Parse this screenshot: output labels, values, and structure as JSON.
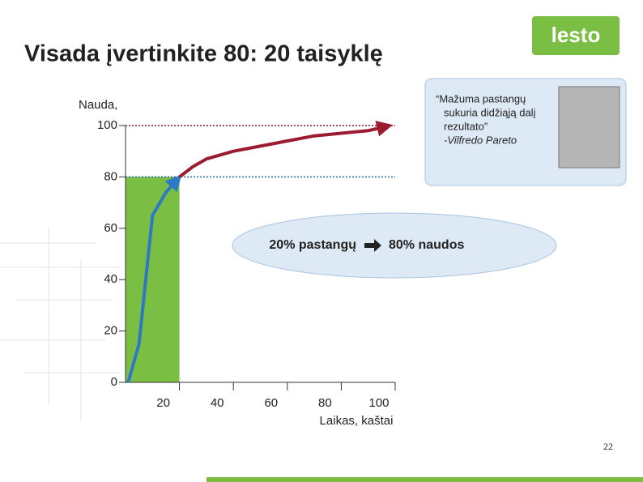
{
  "header": {
    "title": "Visada įvertinkite 80: 20 taisyklę",
    "logo": "lesto"
  },
  "chart_data": {
    "type": "line",
    "ylabel": "Nauda,",
    "xlabel": "Laikas, kaštai",
    "xlim": [
      0,
      100
    ],
    "ylim": [
      0,
      100
    ],
    "xticks": [
      20,
      40,
      60,
      80,
      100
    ],
    "yticks": [
      0,
      20,
      40,
      60,
      80,
      100
    ],
    "highlight": {
      "xlim": [
        0,
        20
      ],
      "top": 80,
      "color": "#7abf44"
    },
    "reference_lines": [
      {
        "value": 100,
        "color": "#8b1a2e"
      },
      {
        "value": 80,
        "color": "#1f6a96"
      }
    ],
    "series": [
      {
        "color": "#2f78c4",
        "x": [
          1,
          5,
          8,
          10,
          15,
          20
        ],
        "values": [
          0,
          15,
          45,
          65,
          74,
          80
        ]
      },
      {
        "color": "#9b1b30",
        "x": [
          20,
          25,
          30,
          40,
          50,
          60,
          70,
          80,
          90,
          98
        ],
        "values": [
          80,
          84,
          87,
          90,
          92,
          94,
          96,
          97,
          98,
          100
        ]
      }
    ]
  },
  "callout": {
    "left": "20% pastangų",
    "right": "80% naudos"
  },
  "quote": {
    "lines": [
      "“Mažuma pastangų",
      "sukuria didžiąją dalį",
      "rezultato”",
      "-Vilfredo Pareto"
    ]
  },
  "page_number": "22"
}
